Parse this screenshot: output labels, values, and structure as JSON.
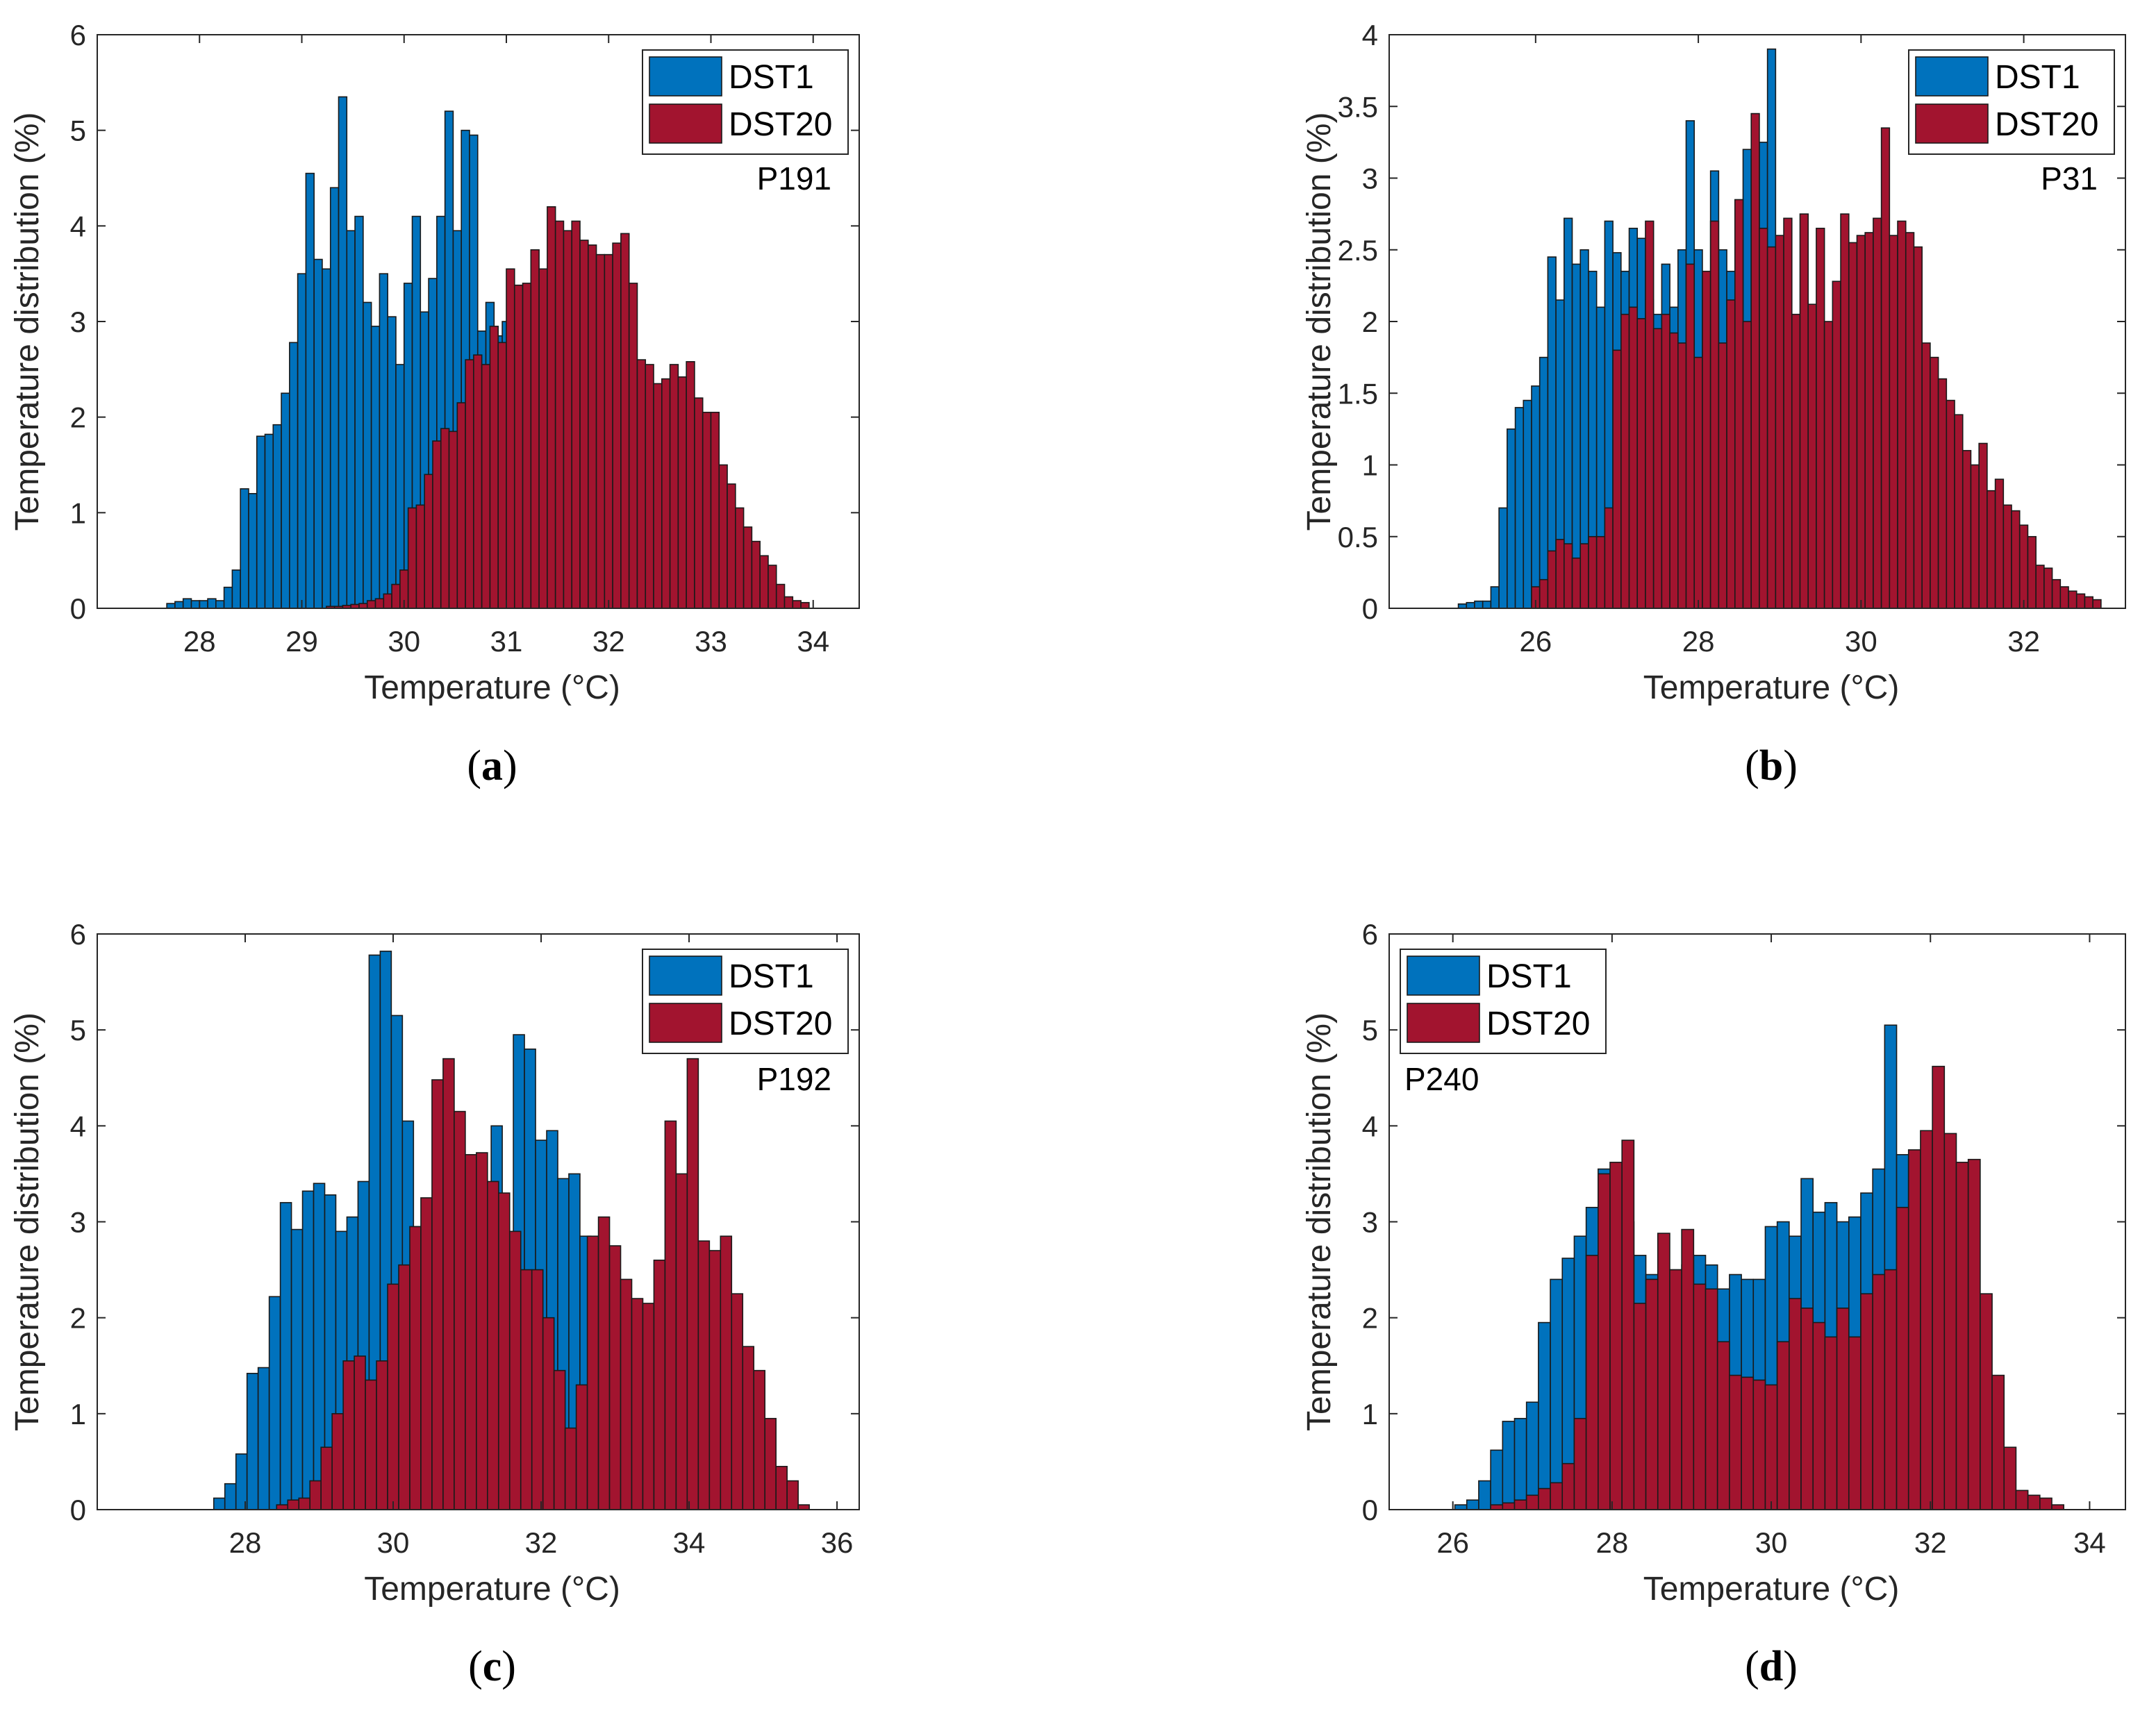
{
  "figure": {
    "background": "#ffffff"
  },
  "chart_data": [
    {
      "id": "a",
      "type": "bar",
      "caption": "a",
      "panel_label": "P191",
      "xlabel": "Temperature (°C)",
      "ylabel": "Temperature distribution (%)",
      "xlim": [
        27.0,
        34.45
      ],
      "ylim": [
        0,
        6
      ],
      "xticks": [
        28,
        29,
        30,
        31,
        32,
        33,
        34
      ],
      "yticks": [
        0,
        1,
        2,
        3,
        4,
        5,
        6
      ],
      "legend_position": "top-right",
      "series": [
        {
          "name": "DST1",
          "color": "#0072BD",
          "x": [
            27.72,
            27.8,
            27.88,
            27.96,
            28.04,
            28.12,
            28.2,
            28.28,
            28.36,
            28.44,
            28.52,
            28.6,
            28.68,
            28.76,
            28.84,
            28.92,
            29.0,
            29.08,
            29.16,
            29.24,
            29.32,
            29.4,
            29.48,
            29.56,
            29.64,
            29.72,
            29.8,
            29.88,
            29.96,
            30.04,
            30.12,
            30.2,
            30.28,
            30.36,
            30.44,
            30.52,
            30.6,
            30.68,
            30.76,
            30.84,
            30.92,
            31.0,
            31.08,
            31.16
          ],
          "values": [
            0.05,
            0.07,
            0.1,
            0.08,
            0.08,
            0.1,
            0.08,
            0.22,
            0.4,
            1.25,
            1.2,
            1.8,
            1.82,
            1.92,
            2.25,
            2.78,
            3.5,
            4.55,
            3.65,
            3.55,
            4.4,
            5.35,
            3.95,
            4.1,
            3.2,
            2.95,
            3.5,
            3.05,
            2.55,
            3.4,
            4.1,
            3.1,
            3.45,
            4.1,
            5.2,
            3.95,
            5.0,
            4.95,
            2.9,
            3.2,
            2.85,
            3.0,
            3.1,
            2.75
          ]
        },
        {
          "name": "DST20",
          "color": "#A2142F",
          "x": [
            29.28,
            29.36,
            29.44,
            29.52,
            29.6,
            29.68,
            29.76,
            29.84,
            29.92,
            30.0,
            30.08,
            30.16,
            30.24,
            30.32,
            30.4,
            30.48,
            30.56,
            30.64,
            30.72,
            30.8,
            30.88,
            30.96,
            31.04,
            31.12,
            31.2,
            31.28,
            31.36,
            31.44,
            31.52,
            31.6,
            31.68,
            31.76,
            31.84,
            31.92,
            32.0,
            32.08,
            32.16,
            32.24,
            32.32,
            32.4,
            32.48,
            32.56,
            32.64,
            32.72,
            32.8,
            32.88,
            32.96,
            33.04,
            33.12,
            33.2,
            33.28,
            33.36,
            33.44,
            33.52,
            33.6,
            33.68,
            33.76,
            33.84,
            33.92
          ],
          "values": [
            0.02,
            0.02,
            0.03,
            0.04,
            0.05,
            0.08,
            0.1,
            0.15,
            0.25,
            0.4,
            1.05,
            1.08,
            1.4,
            1.75,
            1.88,
            1.85,
            2.15,
            2.6,
            2.65,
            2.55,
            2.95,
            2.78,
            3.55,
            3.38,
            3.4,
            3.75,
            3.55,
            4.2,
            4.05,
            3.95,
            4.05,
            3.85,
            3.8,
            3.7,
            3.7,
            3.82,
            3.92,
            3.4,
            2.6,
            2.55,
            2.35,
            2.4,
            2.55,
            2.42,
            2.58,
            2.2,
            2.05,
            2.05,
            1.5,
            1.3,
            1.05,
            0.85,
            0.7,
            0.55,
            0.45,
            0.25,
            0.12,
            0.08,
            0.06
          ]
        }
      ]
    },
    {
      "id": "b",
      "type": "bar",
      "caption": "b",
      "panel_label": "P31",
      "xlabel": "Temperature (°C)",
      "ylabel": "Temperature distribution (%)",
      "xlim": [
        24.2,
        33.25
      ],
      "ylim": [
        0,
        4
      ],
      "xticks": [
        26,
        28,
        30,
        32
      ],
      "yticks": [
        0,
        0.5,
        1,
        1.5,
        2,
        2.5,
        3,
        3.5,
        4
      ],
      "legend_position": "top-right",
      "series": [
        {
          "name": "DST1",
          "color": "#0072BD",
          "x": [
            25.1,
            25.2,
            25.3,
            25.4,
            25.5,
            25.6,
            25.7,
            25.8,
            25.9,
            26.0,
            26.1,
            26.2,
            26.3,
            26.4,
            26.5,
            26.6,
            26.7,
            26.8,
            26.9,
            27.0,
            27.1,
            27.2,
            27.3,
            27.4,
            27.5,
            27.6,
            27.7,
            27.8,
            27.9,
            28.0,
            28.1,
            28.2,
            28.3,
            28.4,
            28.5,
            28.6,
            28.7,
            28.8,
            28.9,
            29.0,
            29.1,
            29.2,
            29.3,
            29.4,
            29.5,
            29.6,
            29.7,
            29.8,
            29.9,
            30.0,
            30.1,
            30.2,
            30.3,
            30.4,
            30.5,
            30.6,
            30.7,
            30.8,
            30.9,
            31.0,
            31.1,
            31.2,
            31.3,
            31.4
          ],
          "values": [
            0.03,
            0.04,
            0.05,
            0.05,
            0.15,
            0.7,
            1.25,
            1.4,
            1.45,
            1.55,
            1.75,
            2.45,
            2.15,
            2.72,
            2.4,
            2.5,
            2.35,
            2.1,
            2.7,
            2.48,
            2.35,
            2.65,
            2.58,
            2.15,
            2.05,
            2.4,
            2.1,
            2.5,
            3.4,
            2.5,
            2.3,
            3.05,
            2.5,
            2.35,
            2.5,
            3.2,
            3.15,
            3.25,
            3.9,
            2.05,
            1.85,
            1.5,
            1.35,
            1.3,
            1.22,
            1.05,
            0.95,
            0.85,
            0.75,
            0.6,
            0.5,
            0.45,
            0.38,
            0.3,
            0.25,
            0.2,
            0.18,
            0.15,
            0.15,
            0.15,
            0.1,
            0.08,
            0.05,
            0.05
          ]
        },
        {
          "name": "DST20",
          "color": "#A2142F",
          "x": [
            26.0,
            26.1,
            26.2,
            26.3,
            26.4,
            26.5,
            26.6,
            26.7,
            26.8,
            26.9,
            27.0,
            27.1,
            27.2,
            27.3,
            27.4,
            27.5,
            27.6,
            27.7,
            27.8,
            27.9,
            28.0,
            28.1,
            28.2,
            28.3,
            28.4,
            28.5,
            28.6,
            28.7,
            28.8,
            28.9,
            29.0,
            29.1,
            29.2,
            29.3,
            29.4,
            29.5,
            29.6,
            29.7,
            29.8,
            29.9,
            30.0,
            30.1,
            30.2,
            30.3,
            30.4,
            30.5,
            30.6,
            30.7,
            30.8,
            30.9,
            31.0,
            31.1,
            31.2,
            31.3,
            31.4,
            31.5,
            31.6,
            31.7,
            31.8,
            31.9,
            32.0,
            32.1,
            32.2,
            32.3,
            32.4,
            32.5,
            32.6,
            32.7,
            32.8,
            32.9
          ],
          "values": [
            0.15,
            0.2,
            0.4,
            0.48,
            0.45,
            0.35,
            0.45,
            0.5,
            0.5,
            0.7,
            1.8,
            2.05,
            2.1,
            2.02,
            2.7,
            1.95,
            2.05,
            1.92,
            1.85,
            2.4,
            1.75,
            2.35,
            2.7,
            1.85,
            2.15,
            2.85,
            2.0,
            3.45,
            2.65,
            2.52,
            2.6,
            2.72,
            2.05,
            2.75,
            2.12,
            2.65,
            2.0,
            2.28,
            2.75,
            2.55,
            2.6,
            2.62,
            2.72,
            3.35,
            2.6,
            2.7,
            2.62,
            2.52,
            1.85,
            1.75,
            1.6,
            1.45,
            1.35,
            1.1,
            1.0,
            1.15,
            0.82,
            0.9,
            0.72,
            0.68,
            0.58,
            0.5,
            0.3,
            0.28,
            0.2,
            0.15,
            0.12,
            0.1,
            0.08,
            0.06
          ]
        }
      ]
    },
    {
      "id": "c",
      "type": "bar",
      "caption": "c",
      "panel_label": "P192",
      "xlabel": "Temperature (°C)",
      "ylabel": "Temperature distribution (%)",
      "xlim": [
        26.0,
        36.3
      ],
      "ylim": [
        0,
        6
      ],
      "xticks": [
        28,
        30,
        32,
        34,
        36
      ],
      "yticks": [
        0,
        1,
        2,
        3,
        4,
        5,
        6
      ],
      "legend_position": "top-right",
      "series": [
        {
          "name": "DST1",
          "color": "#0072BD",
          "x": [
            27.65,
            27.8,
            27.95,
            28.1,
            28.25,
            28.4,
            28.55,
            28.7,
            28.85,
            29.0,
            29.15,
            29.3,
            29.45,
            29.6,
            29.75,
            29.9,
            30.05,
            30.2,
            30.35,
            30.5,
            30.65,
            30.8,
            30.95,
            31.1,
            31.25,
            31.4,
            31.55,
            31.7,
            31.85,
            32.0,
            32.15,
            32.3,
            32.45,
            32.6,
            32.75,
            32.9
          ],
          "values": [
            0.12,
            0.27,
            0.58,
            1.42,
            1.48,
            2.22,
            3.2,
            2.92,
            3.32,
            3.4,
            3.28,
            2.9,
            3.05,
            3.42,
            5.78,
            5.82,
            5.15,
            4.05,
            2.95,
            2.85,
            2.55,
            1.95,
            2.25,
            2.3,
            2.2,
            4.0,
            2.5,
            4.95,
            4.8,
            3.85,
            3.95,
            3.45,
            3.5,
            2.85,
            1.2,
            1.05
          ]
        },
        {
          "name": "DST20",
          "color": "#A2142F",
          "x": [
            28.5,
            28.65,
            28.8,
            28.95,
            29.1,
            29.25,
            29.4,
            29.55,
            29.7,
            29.85,
            30.0,
            30.15,
            30.3,
            30.45,
            30.6,
            30.75,
            30.9,
            31.05,
            31.2,
            31.35,
            31.5,
            31.65,
            31.8,
            31.95,
            32.1,
            32.25,
            32.4,
            32.55,
            32.7,
            32.85,
            33.0,
            33.15,
            33.3,
            33.45,
            33.6,
            33.75,
            33.9,
            34.05,
            34.2,
            34.35,
            34.5,
            34.65,
            34.8,
            34.95,
            35.1,
            35.25,
            35.4,
            35.55
          ],
          "values": [
            0.05,
            0.1,
            0.12,
            0.3,
            0.65,
            1.0,
            1.55,
            1.6,
            1.35,
            1.55,
            2.35,
            2.55,
            2.95,
            3.25,
            4.48,
            4.7,
            4.15,
            3.7,
            3.72,
            3.42,
            3.3,
            2.9,
            2.5,
            2.5,
            2.0,
            1.45,
            0.85,
            1.3,
            2.85,
            3.05,
            2.75,
            2.4,
            2.2,
            2.15,
            2.6,
            4.05,
            3.5,
            4.7,
            2.8,
            2.7,
            2.85,
            2.25,
            1.7,
            1.45,
            0.95,
            0.45,
            0.3,
            0.05
          ]
        }
      ]
    },
    {
      "id": "d",
      "type": "bar",
      "caption": "d",
      "panel_label": "P240",
      "xlabel": "Temperature (°C)",
      "ylabel": "Temperature distribution (%)",
      "xlim": [
        25.2,
        34.45
      ],
      "ylim": [
        0,
        6
      ],
      "xticks": [
        26,
        28,
        30,
        32,
        34
      ],
      "yticks": [
        0,
        1,
        2,
        3,
        4,
        5,
        6
      ],
      "legend_position": "top-left",
      "series": [
        {
          "name": "DST1",
          "color": "#0072BD",
          "x": [
            26.1,
            26.25,
            26.4,
            26.55,
            26.7,
            26.85,
            27.0,
            27.15,
            27.3,
            27.45,
            27.6,
            27.75,
            27.9,
            28.05,
            28.2,
            28.35,
            28.5,
            28.65,
            28.8,
            28.95,
            29.1,
            29.25,
            29.4,
            29.55,
            29.7,
            29.85,
            30.0,
            30.15,
            30.3,
            30.45,
            30.6,
            30.75,
            30.9,
            31.05,
            31.2,
            31.35,
            31.5,
            31.65,
            31.8,
            31.95,
            32.1,
            32.25
          ],
          "values": [
            0.05,
            0.1,
            0.3,
            0.62,
            0.92,
            0.95,
            1.12,
            1.95,
            2.4,
            2.62,
            2.85,
            3.15,
            3.55,
            3.5,
            3.0,
            2.65,
            2.45,
            2.4,
            2.5,
            2.55,
            2.65,
            2.55,
            2.3,
            2.45,
            2.4,
            2.4,
            2.95,
            3.0,
            2.85,
            3.45,
            3.1,
            3.2,
            3.0,
            3.05,
            3.3,
            3.55,
            5.05,
            3.7,
            3.65,
            2.15,
            2.2,
            2.0
          ]
        },
        {
          "name": "DST20",
          "color": "#A2142F",
          "x": [
            26.55,
            26.7,
            26.85,
            27.0,
            27.15,
            27.3,
            27.45,
            27.6,
            27.75,
            27.9,
            28.05,
            28.2,
            28.35,
            28.5,
            28.65,
            28.8,
            28.95,
            29.1,
            29.25,
            29.4,
            29.55,
            29.7,
            29.85,
            30.0,
            30.15,
            30.3,
            30.45,
            30.6,
            30.75,
            30.9,
            31.05,
            31.2,
            31.35,
            31.5,
            31.65,
            31.8,
            31.95,
            32.1,
            32.25,
            32.4,
            32.55,
            32.7,
            32.85,
            33.0,
            33.15,
            33.3,
            33.45,
            33.6
          ],
          "values": [
            0.05,
            0.07,
            0.1,
            0.15,
            0.22,
            0.28,
            0.48,
            0.95,
            2.65,
            3.5,
            3.62,
            3.85,
            2.15,
            2.4,
            2.88,
            2.5,
            2.92,
            2.35,
            2.3,
            1.75,
            1.4,
            1.38,
            1.35,
            1.3,
            1.75,
            2.2,
            2.1,
            1.95,
            1.8,
            2.1,
            1.8,
            2.25,
            2.45,
            2.5,
            3.15,
            3.75,
            3.95,
            4.62,
            3.92,
            3.62,
            3.65,
            2.25,
            1.4,
            0.65,
            0.2,
            0.15,
            0.12,
            0.05
          ]
        }
      ]
    }
  ]
}
